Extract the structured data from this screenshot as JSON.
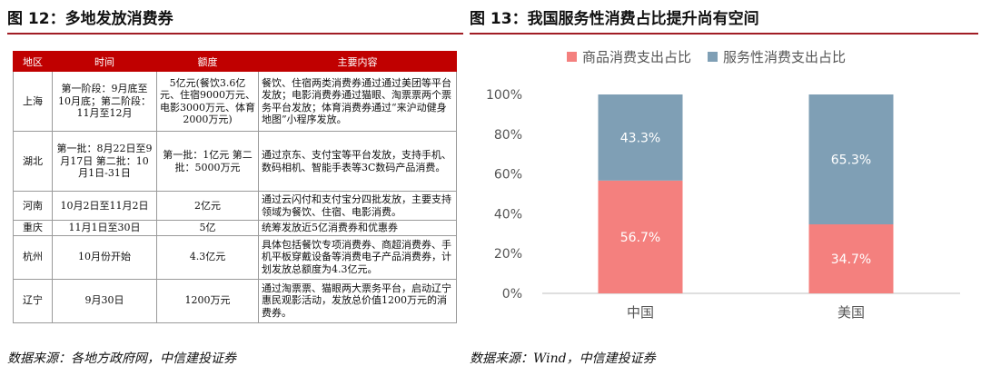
{
  "left": {
    "title": "图 12：多地发放消费券",
    "source": "数据来源：各地方政府网，中信建投证券",
    "table": {
      "headers": [
        "地区",
        "时间",
        "额度",
        "主要内容"
      ],
      "rows": [
        {
          "region": "上海",
          "time": "第一阶段：9月底至10月底；第二阶段：11月至12月",
          "amount": "5亿元(餐饮3.6亿元、住宿9000万元、电影3000万元、体育2000万元)",
          "content": "餐饮、住宿两类消费券通过通过美团等平台发放；电影消费券通过猫眼、淘票票两个票务平台发放；体育消费券通过“来沪动健身地图”小程序发放。"
        },
        {
          "region": "湖北",
          "time": "第一批：8月22日至9月17日 第二批：10月1日-31日",
          "amount": "第一批：1亿元 第二批：5000万元",
          "content": "通过京东、支付宝等平台发放，支持手机、数码相机、智能手表等3C数码产品消费。"
        },
        {
          "region": "河南",
          "time": "10月2日至11月2日",
          "amount": "2亿元",
          "content": "通过云闪付和支付宝分四批发放，主要支持领域为餐饮、住宿、电影消费。"
        },
        {
          "region": "重庆",
          "time": "11月1日至30日",
          "amount": "5亿",
          "content": "统筹发放近5亿消费券和优惠券"
        },
        {
          "region": "杭州",
          "time": "10月份开始",
          "amount": "4.3亿元",
          "content": "具体包括餐饮专项消费券、商超消费券、手机平板穿戴设备等消费电子产品消费券，计划发放总额度为4.3亿元。"
        },
        {
          "region": "辽宁",
          "time": "9月30日",
          "amount": "1200万元",
          "content": "通过淘票票、猫眼两大票务平台，启动辽宁惠民观影活动，发放总价值1200万元的消费券。"
        }
      ]
    }
  },
  "right": {
    "title": "图 13：我国服务性消费占比提升尚有空间",
    "source": "数据来源：Wind，中信建投证券",
    "chart_data": {
      "type": "bar",
      "stacked": true,
      "categories": [
        "中国",
        "美国"
      ],
      "series": [
        {
          "name": "商品消费支出占比",
          "values": [
            56.7,
            34.7
          ],
          "labels": [
            "56.7%",
            "34.7%"
          ],
          "color": "#f4807e"
        },
        {
          "name": "服务性消费支出占比",
          "values": [
            43.3,
            65.3
          ],
          "labels": [
            "43.3%",
            "65.3%"
          ],
          "color": "#7f9fb5"
        }
      ],
      "ylim": [
        0,
        100
      ],
      "yticks": [
        "0%",
        "20%",
        "40%",
        "60%",
        "80%",
        "100%"
      ],
      "legend": "top",
      "grid": false
    }
  }
}
